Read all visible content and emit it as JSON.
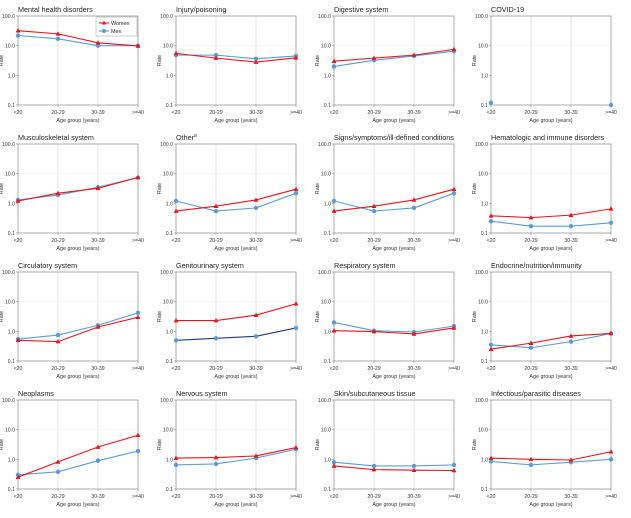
{
  "legend": {
    "women": "Women",
    "men": "Men",
    "colors": {
      "women": "#e8141c",
      "men": "#5b9bd5",
      "men_line": "#5b9bd5"
    }
  },
  "axis": {
    "ylabel": "Rate",
    "xlabel": "Age group (years)",
    "categories": [
      "<20",
      "20-29",
      "30-39",
      ">=40"
    ],
    "yticks": [
      "100.0",
      "10.0",
      "1.0",
      "0.1"
    ],
    "ylim": [
      0.1,
      100
    ]
  },
  "chart_data": [
    {
      "type": "line",
      "title": "Mental health disorders",
      "categories": [
        "<20",
        "20-29",
        "30-39",
        ">=40"
      ],
      "series": [
        {
          "name": "Women",
          "values": [
            32,
            25,
            12.5,
            9.8
          ]
        },
        {
          "name": "Men",
          "values": [
            22,
            17,
            10,
            10
          ]
        }
      ],
      "ylim": [
        0.1,
        100
      ]
    },
    {
      "type": "line",
      "title": "Injury/poisoning",
      "categories": [
        "<20",
        "20-29",
        "30-39",
        ">=40"
      ],
      "series": [
        {
          "name": "Women",
          "values": [
            5.5,
            3.8,
            2.8,
            3.9
          ]
        },
        {
          "name": "Men",
          "values": [
            4.8,
            4.8,
            3.6,
            4.5
          ]
        }
      ],
      "ylim": [
        0.1,
        100
      ]
    },
    {
      "type": "line",
      "title": "Digestive system",
      "categories": [
        "<20",
        "20-29",
        "30-39",
        ">=40"
      ],
      "series": [
        {
          "name": "Women",
          "values": [
            3,
            3.8,
            4.8,
            7.5
          ]
        },
        {
          "name": "Men",
          "values": [
            2,
            3.2,
            4.5,
            6.5
          ]
        }
      ],
      "ylim": [
        0.1,
        100
      ]
    },
    {
      "type": "line",
      "title": "COVID-19",
      "categories": [
        "<20",
        "20-29",
        "30-39",
        ">=40"
      ],
      "series": [
        {
          "name": "Men",
          "values": [
            0.12,
            null,
            null,
            0.1
          ]
        }
      ],
      "ylim": [
        0.1,
        100
      ]
    },
    {
      "type": "line",
      "title": "Musculoskeletal system",
      "categories": [
        "<20",
        "20-29",
        "30-39",
        ">=40"
      ],
      "series": [
        {
          "name": "Women",
          "values": [
            1.2,
            2.2,
            3.2,
            7.5
          ]
        },
        {
          "name": "Men",
          "values": [
            1.3,
            1.9,
            3.5,
            7.3
          ]
        }
      ],
      "ylim": [
        0.1,
        100
      ]
    },
    {
      "type": "line",
      "title": "Other",
      "title_sup": "a",
      "categories": [
        "<20",
        "20-29",
        "30-39",
        ">=40"
      ],
      "series": [
        {
          "name": "Women",
          "values": [
            0.55,
            0.8,
            1.3,
            3
          ]
        },
        {
          "name": "Men",
          "values": [
            1.2,
            0.55,
            0.7,
            2.2
          ]
        }
      ],
      "ylim": [
        0.1,
        100
      ]
    },
    {
      "type": "line",
      "title": "Signs/symptoms/ill-defined conditions",
      "categories": [
        "<20",
        "20-29",
        "30-39",
        ">=40"
      ],
      "series": [
        {
          "name": "Women",
          "values": [
            0.55,
            0.8,
            1.3,
            3
          ]
        },
        {
          "name": "Men",
          "values": [
            1.2,
            0.55,
            0.7,
            2.2
          ]
        }
      ],
      "ylim": [
        0.1,
        100
      ]
    },
    {
      "type": "line",
      "title": "Hematologic and immune disorders",
      "categories": [
        "<20",
        "20-29",
        "30-39",
        ">=40"
      ],
      "series": [
        {
          "name": "Women",
          "values": [
            0.38,
            0.33,
            0.4,
            0.65
          ]
        },
        {
          "name": "Men",
          "values": [
            0.25,
            0.17,
            0.17,
            0.22
          ]
        }
      ],
      "ylim": [
        0.1,
        100
      ]
    },
    {
      "type": "line",
      "title": "Circulatory system",
      "categories": [
        "<20",
        "20-29",
        "30-39",
        ">=40"
      ],
      "series": [
        {
          "name": "Women",
          "values": [
            0.5,
            0.45,
            1.4,
            3
          ]
        },
        {
          "name": "Men",
          "values": [
            0.55,
            0.75,
            1.6,
            4.2
          ]
        }
      ],
      "ylim": [
        0.1,
        100
      ]
    },
    {
      "type": "line",
      "title": "Genitourinary system",
      "categories": [
        "<20",
        "20-29",
        "30-39",
        ">=40"
      ],
      "series": [
        {
          "name": "Women",
          "values": [
            2.3,
            2.3,
            3.5,
            8.5
          ]
        },
        {
          "name": "Men",
          "values": [
            0.5,
            0.58,
            0.68,
            1.3
          ]
        }
      ],
      "men_line_color": "#1f3a7a",
      "ylim": [
        0.1,
        100
      ]
    },
    {
      "type": "line",
      "title": "Respiratory system",
      "categories": [
        "<20",
        "20-29",
        "30-39",
        ">=40"
      ],
      "series": [
        {
          "name": "Women",
          "values": [
            1.05,
            0.98,
            0.82,
            1.3
          ]
        },
        {
          "name": "Men",
          "values": [
            2,
            1.05,
            0.95,
            1.5
          ]
        }
      ],
      "ylim": [
        0.1,
        100
      ]
    },
    {
      "type": "line",
      "title": "Endocrine/nutrition/immunity",
      "categories": [
        "<20",
        "20-29",
        "30-39",
        ">=40"
      ],
      "series": [
        {
          "name": "Women",
          "values": [
            0.25,
            0.4,
            0.7,
            0.85
          ]
        },
        {
          "name": "Men",
          "values": [
            0.35,
            0.28,
            0.45,
            0.85
          ]
        }
      ],
      "ylim": [
        0.1,
        100
      ]
    },
    {
      "type": "line",
      "title": "Neoplasms",
      "categories": [
        "<20",
        "20-29",
        "30-39",
        ">=40"
      ],
      "series": [
        {
          "name": "Women",
          "values": [
            0.25,
            0.82,
            2.6,
            6.5
          ]
        },
        {
          "name": "Men",
          "values": [
            0.3,
            0.38,
            0.9,
            1.9
          ]
        }
      ],
      "ylim": [
        0.1,
        100
      ]
    },
    {
      "type": "line",
      "title": "Nervous system",
      "categories": [
        "<20",
        "20-29",
        "30-39",
        ">=40"
      ],
      "series": [
        {
          "name": "Women",
          "values": [
            1.1,
            1.15,
            1.3,
            2.5
          ]
        },
        {
          "name": "Men",
          "values": [
            0.65,
            0.7,
            1.1,
            2.2
          ]
        }
      ],
      "ylim": [
        0.1,
        100
      ]
    },
    {
      "type": "line",
      "title": "Skin/subcutaneous tissue",
      "categories": [
        "<20",
        "20-29",
        "30-39",
        ">=40"
      ],
      "series": [
        {
          "name": "Women",
          "values": [
            0.6,
            0.45,
            0.43,
            0.42
          ]
        },
        {
          "name": "Men",
          "values": [
            0.8,
            0.6,
            0.6,
            0.65
          ]
        }
      ],
      "ylim": [
        0.1,
        100
      ]
    },
    {
      "type": "line",
      "title": "Infectious/parasitic diseases",
      "categories": [
        "<20",
        "20-29",
        "30-39",
        ">=40"
      ],
      "series": [
        {
          "name": "Women",
          "values": [
            1.1,
            1,
            0.95,
            1.8
          ]
        },
        {
          "name": "Men",
          "values": [
            0.85,
            0.65,
            0.8,
            1
          ]
        }
      ],
      "ylim": [
        0.1,
        100
      ]
    }
  ]
}
